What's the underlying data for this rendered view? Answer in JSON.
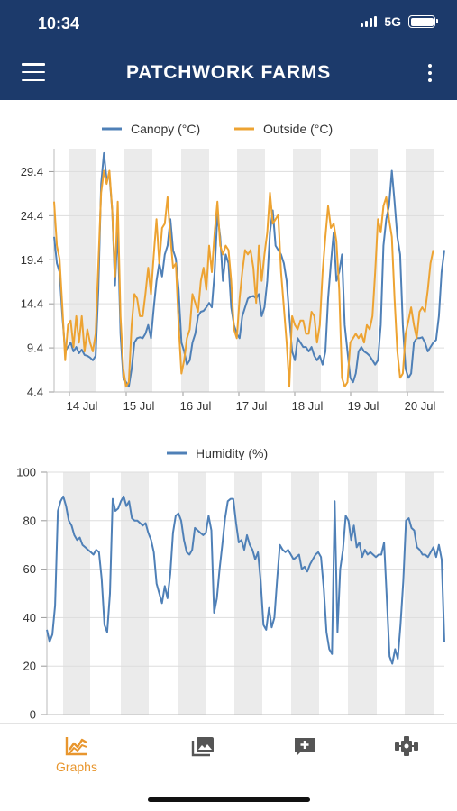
{
  "status_bar": {
    "time": "10:34",
    "network": "5G"
  },
  "app_bar": {
    "title": "PATCHWORK FARMS",
    "menu_icon": "hamburger-menu-icon",
    "more_icon": "more-vert-icon"
  },
  "colors": {
    "app_bar": "#1c3a6b",
    "canopy": "#4f80b7",
    "outside": "#eda332",
    "humidity": "#4f80b7",
    "accent": "#e8962e",
    "night_band": "#ebebeb"
  },
  "chart_data": [
    {
      "type": "line",
      "series": [
        {
          "name": "Canopy (°C)",
          "color": "#4f80b7",
          "values": [
            22.0,
            19.0,
            18.0,
            13.0,
            9.0,
            9.5,
            10.0,
            9.0,
            9.5,
            8.8,
            9.2,
            8.6,
            8.5,
            8.3,
            8.0,
            8.5,
            16.0,
            28.0,
            31.5,
            28.5,
            29.0,
            25.0,
            16.5,
            23.0,
            11.0,
            6.0,
            5.5,
            5.0,
            7.0,
            10.0,
            10.5,
            10.6,
            10.5,
            11.0,
            12.0,
            10.5,
            14.0,
            17.0,
            19.0,
            17.5,
            20.0,
            21.0,
            24.0,
            20.5,
            19.5,
            16.0,
            10.0,
            9.0,
            7.5,
            8.0,
            10.0,
            11.0,
            13.0,
            13.5,
            13.6,
            14.0,
            14.5,
            14.0,
            18.0,
            24.5,
            22.0,
            17.0,
            20.0,
            19.0,
            14.0,
            12.0,
            11.0,
            10.5,
            13.0,
            14.0,
            15.0,
            15.2,
            15.3,
            15.0,
            15.5,
            13.0,
            14.0,
            17.0,
            22.5,
            25.0,
            21.0,
            20.5,
            20.0,
            19.0,
            17.0,
            13.0,
            9.0,
            8.0,
            10.5,
            10.0,
            9.5,
            9.5,
            9.0,
            9.5,
            8.5,
            8.0,
            8.5,
            7.5,
            9.0,
            15.0,
            19.0,
            22.5,
            17.0,
            18.0,
            20.0,
            12.0,
            9.0,
            6.0,
            5.5,
            6.5,
            9.0,
            9.5,
            9.0,
            8.8,
            8.5,
            8.0,
            7.5,
            8.0,
            12.0,
            21.0,
            24.0,
            25.5,
            29.5,
            26.0,
            22.0,
            20.0,
            12.0,
            7.0,
            6.0,
            6.5,
            10.0,
            10.5,
            10.5,
            10.6,
            10.0,
            9.0,
            9.5,
            10.0,
            10.3,
            13.0,
            18.0,
            20.5
          ]
        },
        {
          "name": "Outside (°C)",
          "color": "#eda332",
          "values": [
            26.0,
            21.0,
            19.5,
            14.0,
            8.0,
            12.0,
            12.5,
            9.5,
            13.0,
            10.0,
            13.0,
            9.0,
            11.5,
            10.0,
            9.0,
            11.0,
            19.0,
            27.0,
            29.5,
            28.0,
            29.5,
            25.0,
            17.5,
            26.0,
            13.0,
            7.0,
            5.0,
            5.5,
            12.0,
            15.5,
            15.0,
            13.0,
            13.0,
            15.5,
            18.5,
            15.5,
            20.0,
            24.0,
            19.0,
            23.0,
            23.5,
            26.5,
            22.0,
            18.5,
            19.0,
            12.0,
            6.5,
            8.0,
            10.5,
            11.5,
            15.5,
            14.5,
            13.5,
            17.0,
            18.5,
            16.0,
            21.0,
            18.0,
            22.5,
            26.0,
            21.0,
            20.0,
            21.0,
            20.5,
            17.0,
            11.5,
            10.5,
            15.0,
            18.0,
            20.5,
            20.0,
            20.5,
            18.5,
            14.5,
            21.0,
            17.0,
            20.0,
            22.5,
            27.0,
            23.5,
            24.0,
            24.5,
            18.0,
            14.0,
            10.0,
            5.0,
            13.0,
            12.0,
            11.5,
            12.5,
            12.5,
            11.0,
            11.0,
            13.5,
            13.0,
            10.0,
            12.0,
            18.0,
            22.0,
            25.5,
            23.0,
            23.5,
            21.5,
            16.0,
            6.0,
            5.0,
            5.5,
            10.0,
            10.5,
            11.0,
            10.5,
            11.0,
            10.0,
            12.0,
            11.5,
            13.0,
            18.0,
            24.0,
            22.5,
            25.5,
            26.5,
            24.0,
            22.0,
            15.0,
            9.0,
            6.0,
            6.5,
            11.0,
            12.5,
            14.0,
            12.0,
            10.5,
            13.5,
            14.0,
            13.5,
            16.0,
            19.0,
            20.5
          ]
        }
      ],
      "x_ticks": [
        "14 Jul",
        "15 Jul",
        "16 Jul",
        "17 Jul",
        "18 Jul",
        "19 Jul",
        "20 Jul"
      ],
      "y_ticks": [
        "29.4",
        "24.4",
        "19.4",
        "14.4",
        "9.4",
        "4.4"
      ],
      "ylim": [
        4.4,
        32.0
      ],
      "grid": true,
      "legend": "top-center"
    },
    {
      "type": "line",
      "series": [
        {
          "name": "Humidity (%)",
          "color": "#4f80b7",
          "values": [
            35,
            30,
            33,
            45,
            84,
            88,
            90,
            86,
            80,
            78,
            74,
            72,
            73,
            70,
            69,
            68,
            67,
            66,
            68,
            67,
            56,
            37,
            34,
            50,
            89,
            84,
            85,
            88,
            90,
            86,
            88,
            81,
            80,
            80,
            79,
            78,
            79,
            75,
            72,
            67,
            54,
            50,
            46,
            53,
            48,
            58,
            75,
            82,
            83,
            80,
            72,
            67,
            66,
            68,
            77,
            76,
            75,
            74,
            75,
            82,
            76,
            42,
            48,
            60,
            70,
            81,
            88,
            89,
            89,
            79,
            71,
            72,
            68,
            74,
            70,
            68,
            64,
            67,
            55,
            37,
            35,
            44,
            36,
            40,
            56,
            70,
            68,
            67,
            68,
            66,
            64,
            65,
            66,
            60,
            61,
            59,
            62,
            64,
            66,
            67,
            65,
            52,
            34,
            27,
            25,
            88,
            34,
            60,
            68,
            82,
            80,
            72,
            78,
            69,
            71,
            65,
            68,
            66,
            67,
            66,
            65,
            66,
            66,
            71,
            48,
            24,
            21,
            27,
            23,
            37,
            55,
            80,
            81,
            77,
            76,
            69,
            68,
            66,
            66,
            65,
            67,
            69,
            65,
            70,
            64,
            30
          ]
        }
      ],
      "y_ticks": [
        "100",
        "80",
        "60",
        "40",
        "20",
        "0"
      ],
      "ylim": [
        0,
        100
      ],
      "grid": true,
      "legend": "top-center"
    }
  ],
  "bottom_nav": {
    "items": [
      {
        "label": "Graphs",
        "icon": "line-chart-icon",
        "active": true
      },
      {
        "label": "",
        "icon": "photo-library-icon"
      },
      {
        "label": "",
        "icon": "add-comment-icon"
      },
      {
        "label": "",
        "icon": "grid-settings-icon"
      }
    ]
  }
}
